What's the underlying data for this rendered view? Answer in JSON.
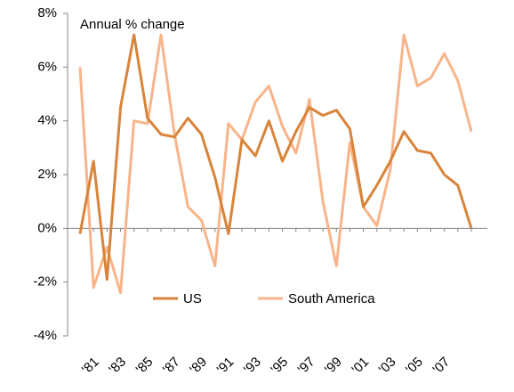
{
  "chart_data": {
    "type": "line",
    "annotation": "Annual % change",
    "categories": [
      null,
      "'81",
      null,
      "'83",
      null,
      "'85",
      null,
      "'87",
      null,
      "'89",
      null,
      "'91",
      null,
      "'93",
      null,
      "'95",
      null,
      "'97",
      null,
      "'99",
      null,
      "'01",
      null,
      "'03",
      null,
      "'05",
      null,
      "'07",
      null,
      null
    ],
    "series": [
      {
        "name": "US",
        "color": "#d8843a",
        "values": [
          -0.2,
          2.5,
          -1.9,
          4.5,
          7.2,
          4.1,
          3.5,
          3.4,
          4.1,
          3.5,
          1.9,
          -0.2,
          3.3,
          2.7,
          4.0,
          2.5,
          3.6,
          4.5,
          4.2,
          4.4,
          3.7,
          0.8,
          1.6,
          2.5,
          3.6,
          2.9,
          2.8,
          2.0,
          1.6,
          0.0
        ]
      },
      {
        "name": "South America",
        "color": "#f8b48a",
        "values": [
          6.0,
          -2.2,
          -0.7,
          -2.4,
          4.0,
          3.9,
          7.2,
          3.5,
          0.8,
          0.3,
          -1.4,
          3.9,
          3.3,
          4.7,
          5.3,
          3.8,
          2.8,
          4.8,
          1.0,
          -1.4,
          3.2,
          0.8,
          0.1,
          2.2,
          7.2,
          5.3,
          5.6,
          6.5,
          5.5,
          3.6
        ]
      }
    ],
    "ylim": [
      -4,
      8
    ],
    "yticks": [
      {
        "value": -4,
        "label": "-4%"
      },
      {
        "value": -2,
        "label": "-2%"
      },
      {
        "value": 0,
        "label": "0%"
      },
      {
        "value": 2,
        "label": "2%"
      },
      {
        "value": 4,
        "label": "4%"
      },
      {
        "value": 6,
        "label": "6%"
      },
      {
        "value": 8,
        "label": "8%"
      }
    ],
    "legend": "bottom"
  }
}
